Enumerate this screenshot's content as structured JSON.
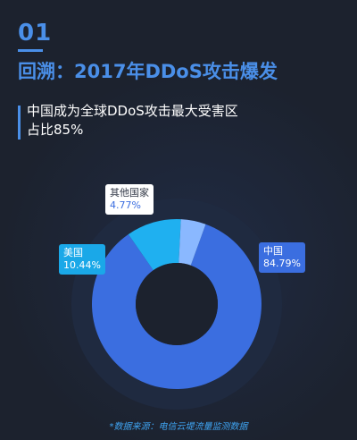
{
  "header": {
    "section_number": "01",
    "title": "回溯：2017年DDoS攻击爆发",
    "subtitle_line1": "中国成为全球DDoS攻击最大受害区",
    "subtitle_line2": "占比85%"
  },
  "chart_data": {
    "type": "pie",
    "style": "donut",
    "categories": [
      "中国",
      "美国",
      "其他国家"
    ],
    "values": [
      84.79,
      10.44,
      4.77
    ],
    "value_labels": [
      "84.79%",
      "10.44%",
      "4.77%"
    ],
    "colors": [
      "#3b6ee0",
      "#1fb0f0",
      "#8ab8ff"
    ]
  },
  "footer": {
    "source": "*数据来源：电信云堤流量监测数据"
  }
}
